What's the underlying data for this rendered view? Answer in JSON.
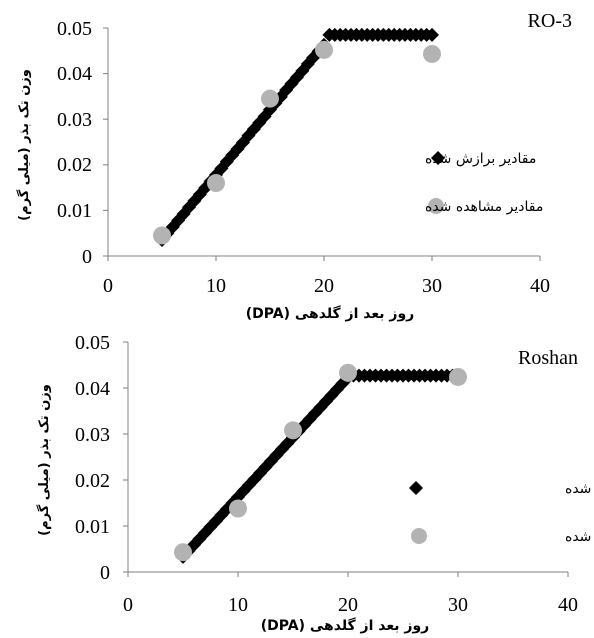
{
  "chart_data": [
    {
      "type": "scatter",
      "title": "RO-3",
      "xlabel": "روز بعد از گلدهی (DPA)",
      "ylabel": "وزن تک بذر (میلی گرم)",
      "xlim": [
        0,
        40
      ],
      "ylim": [
        0,
        0.05
      ],
      "xticks": [
        "0",
        "10",
        "20",
        "30",
        "40"
      ],
      "yticks": [
        "0",
        "0.01",
        "0.02",
        "0.03",
        "0.04",
        "0.05"
      ],
      "legend_position": "right",
      "series": [
        {
          "name": "مقادیر برازش شده",
          "marker": "diamond",
          "color": "#000000",
          "x": [
            5,
            5.5,
            6,
            6.5,
            7,
            7.5,
            8,
            8.5,
            9,
            9.5,
            10,
            10.5,
            11,
            11.5,
            12,
            12.5,
            13,
            13.5,
            14,
            14.5,
            15,
            15.5,
            16,
            16.5,
            17,
            17.5,
            18,
            18.5,
            19,
            19.5,
            20,
            20.5,
            21,
            21.5,
            22,
            22.5,
            23,
            23.5,
            24,
            24.5,
            25,
            25.5,
            26,
            26.5,
            27,
            27.5,
            28,
            28.5,
            29,
            29.5,
            30
          ],
          "y": [
            0.0035,
            0.005,
            0.0064,
            0.0078,
            0.0092,
            0.0107,
            0.0121,
            0.0135,
            0.0149,
            0.0164,
            0.0178,
            0.0192,
            0.0207,
            0.0221,
            0.0235,
            0.0249,
            0.0264,
            0.0278,
            0.0292,
            0.0306,
            0.0321,
            0.0335,
            0.0349,
            0.0364,
            0.0378,
            0.0392,
            0.0406,
            0.0421,
            0.0435,
            0.0449,
            0.0463,
            0.0485,
            0.0485,
            0.0485,
            0.0485,
            0.0485,
            0.0485,
            0.0485,
            0.0485,
            0.0485,
            0.0485,
            0.0485,
            0.0485,
            0.0485,
            0.0485,
            0.0485,
            0.0485,
            0.0485,
            0.0485,
            0.0485,
            0.0485
          ]
        },
        {
          "name": "مقادیر مشاهده شده",
          "marker": "circle",
          "color": "#b3b3b3",
          "x": [
            5,
            10,
            15,
            20,
            30
          ],
          "y": [
            0.0045,
            0.016,
            0.0345,
            0.0452,
            0.0443
          ]
        }
      ]
    },
    {
      "type": "scatter",
      "title": "Roshan",
      "xlabel": "روز بعد از گلدهی (DPA)",
      "ylabel": "وزن تک بذر (میلی گرم)",
      "xlim": [
        0,
        40
      ],
      "ylim": [
        0,
        0.05
      ],
      "xticks": [
        "0",
        "10",
        "20",
        "30",
        "40"
      ],
      "yticks": [
        "0",
        "0.01",
        "0.02",
        "0.03",
        "0.04",
        "0.05"
      ],
      "legend_position": "right",
      "series": [
        {
          "name": "مقادیر برازش شده",
          "marker": "diamond",
          "color": "#000000",
          "x": [
            5,
            5.5,
            6,
            6.5,
            7,
            7.5,
            8,
            8.5,
            9,
            9.5,
            10,
            10.5,
            11,
            11.5,
            12,
            12.5,
            13,
            13.5,
            14,
            14.5,
            15,
            15.5,
            16,
            16.5,
            17,
            17.5,
            18,
            18.5,
            19,
            19.5,
            20,
            20.5,
            21,
            21.5,
            22,
            22.5,
            23,
            23.5,
            24,
            24.5,
            25,
            25.5,
            26,
            26.5,
            27,
            27.5,
            28,
            28.5,
            29,
            29.5,
            30
          ],
          "y": [
            0.0033,
            0.0046,
            0.0059,
            0.0072,
            0.0085,
            0.0098,
            0.0111,
            0.0124,
            0.0137,
            0.015,
            0.0163,
            0.0176,
            0.0189,
            0.0202,
            0.0215,
            0.0228,
            0.0241,
            0.0254,
            0.0267,
            0.028,
            0.0293,
            0.0306,
            0.0319,
            0.0332,
            0.0345,
            0.0358,
            0.0371,
            0.0384,
            0.0397,
            0.041,
            0.0423,
            0.0427,
            0.0427,
            0.0427,
            0.0427,
            0.0427,
            0.0427,
            0.0427,
            0.0427,
            0.0427,
            0.0427,
            0.0427,
            0.0427,
            0.0427,
            0.0427,
            0.0427,
            0.0427,
            0.0427,
            0.0427,
            0.0427,
            0.0427
          ]
        },
        {
          "name": "مقادیر مشاهده شده",
          "marker": "circle",
          "color": "#b3b3b3",
          "x": [
            5,
            10,
            15,
            20,
            30
          ],
          "y": [
            0.0043,
            0.0138,
            0.0308,
            0.0433,
            0.0424
          ]
        }
      ]
    }
  ]
}
